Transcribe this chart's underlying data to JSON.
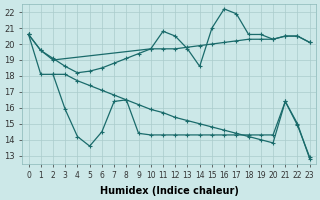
{
  "xlabel": "Humidex (Indice chaleur)",
  "bg_color": "#cce8e8",
  "grid_color": "#aacccc",
  "line_color": "#1a6b6b",
  "x_ticks": [
    0,
    1,
    2,
    3,
    4,
    5,
    6,
    7,
    8,
    9,
    10,
    11,
    12,
    13,
    14,
    15,
    16,
    17,
    18,
    19,
    20,
    21,
    22,
    23
  ],
  "y_ticks": [
    13,
    14,
    15,
    16,
    17,
    18,
    19,
    20,
    21,
    22
  ],
  "xlim": [
    -0.5,
    23.5
  ],
  "ylim": [
    12.5,
    22.5
  ],
  "lineA_x": [
    0,
    1,
    2,
    10,
    11,
    12,
    13,
    14,
    15,
    16,
    17,
    18,
    19,
    20,
    21,
    22,
    23
  ],
  "lineA_y": [
    20.6,
    19.6,
    19.0,
    19.7,
    20.8,
    20.5,
    19.7,
    18.6,
    21.0,
    22.2,
    21.9,
    20.6,
    20.6,
    20.3,
    20.5,
    20.5,
    20.1
  ],
  "lineB_x": [
    0,
    1,
    2,
    3,
    4,
    5,
    6,
    7,
    8,
    9,
    10,
    11,
    12,
    13,
    14,
    15,
    16,
    17,
    18,
    19,
    20,
    21,
    22,
    23
  ],
  "lineB_y": [
    20.6,
    19.6,
    19.1,
    18.6,
    18.2,
    18.3,
    18.5,
    18.8,
    19.1,
    19.4,
    19.7,
    19.7,
    19.7,
    19.8,
    19.9,
    20.0,
    20.1,
    20.2,
    20.3,
    20.3,
    20.3,
    20.5,
    20.5,
    20.1
  ],
  "lineC_x": [
    0,
    1,
    2,
    3,
    4,
    5,
    6,
    7,
    8,
    9,
    10,
    11,
    12,
    13,
    14,
    15,
    16,
    17,
    18,
    19,
    20,
    21,
    22,
    23
  ],
  "lineC_y": [
    20.6,
    18.1,
    18.1,
    18.1,
    17.7,
    17.4,
    17.1,
    16.8,
    16.5,
    16.2,
    15.9,
    15.7,
    15.4,
    15.2,
    15.0,
    14.8,
    14.6,
    14.4,
    14.2,
    14.0,
    13.8,
    16.4,
    15.0,
    12.8
  ],
  "lineD_x": [
    2,
    3,
    4,
    5,
    6,
    7,
    8,
    9,
    10,
    11,
    12,
    13,
    14,
    15,
    16,
    17,
    18,
    19,
    20,
    21,
    22,
    23
  ],
  "lineD_y": [
    18.1,
    15.9,
    14.2,
    13.6,
    14.5,
    16.4,
    16.5,
    14.4,
    14.3,
    14.3,
    14.3,
    14.3,
    14.3,
    14.3,
    14.3,
    14.3,
    14.3,
    14.3,
    14.3,
    16.4,
    14.9,
    12.9
  ]
}
